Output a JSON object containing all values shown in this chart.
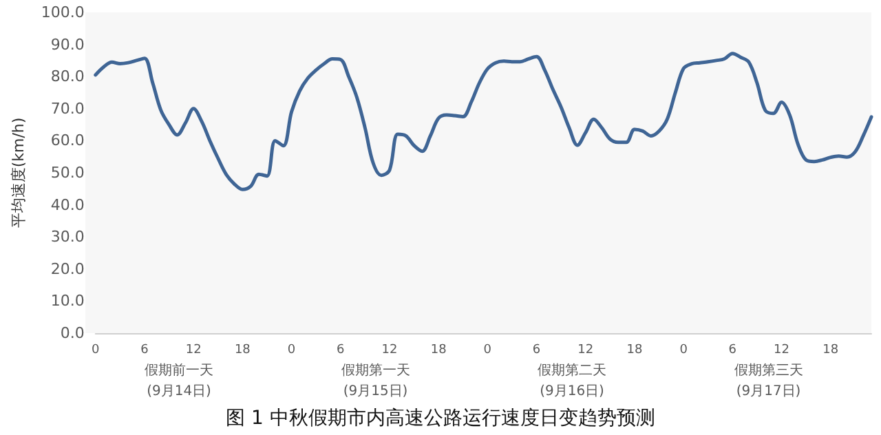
{
  "chart_data": {
    "type": "line",
    "title": "图 1 中秋假期市内高速公路运行速度日变趋势预测",
    "ylabel": "平均速度(km/h)",
    "annotations": [
      "假期前一天\n(9月14日)",
      "假期第一天\n(9月15日)",
      "假期第二天\n(9月16日)",
      "假期第三天\n(9月17日)"
    ],
    "categories": [
      "0",
      null,
      null,
      null,
      null,
      null,
      "6",
      null,
      null,
      null,
      null,
      null,
      "12",
      null,
      null,
      null,
      null,
      null,
      "18",
      null,
      null,
      null,
      null,
      null,
      "0",
      null,
      null,
      null,
      null,
      null,
      "6",
      null,
      null,
      null,
      null,
      null,
      "12",
      null,
      null,
      null,
      null,
      null,
      "18",
      null,
      null,
      null,
      null,
      null,
      "0",
      null,
      null,
      null,
      null,
      null,
      "6",
      null,
      null,
      null,
      null,
      null,
      "12",
      null,
      null,
      null,
      null,
      null,
      "18",
      null,
      null,
      null,
      null,
      null,
      "0",
      null,
      null,
      null,
      null,
      null,
      "6",
      null,
      null,
      null,
      null,
      null,
      "12",
      null,
      null,
      null,
      null,
      null,
      "18",
      null,
      null,
      null,
      null,
      null
    ],
    "series": [
      {
        "color": "#3f6595",
        "values": [
          80.5,
          83,
          84.5,
          84,
          84.3,
          85,
          85.7,
          78,
          69.5,
          65,
          61.8,
          65.5,
          70,
          66,
          60,
          54.5,
          49.5,
          46.5,
          44.8,
          45.8,
          49.5,
          49,
          60,
          58.4,
          69,
          75.5,
          79.5,
          82,
          84,
          85.5,
          85.3,
          80,
          73.5,
          64,
          53,
          49.2,
          50.8,
          62,
          61.5,
          58.5,
          56.7,
          61.5,
          67,
          68,
          67.8,
          67.5,
          72,
          78,
          82.4,
          84.3,
          84.8,
          84.6,
          84.6,
          85.5,
          86.2,
          82,
          76,
          70.5,
          64,
          58.6,
          62.5,
          66.7,
          64,
          60.5,
          59.5,
          59.5,
          63.5,
          63,
          61.5,
          63,
          66.7,
          75,
          82.5,
          84,
          84.3,
          84.6,
          85,
          85.5,
          87.2,
          86,
          84.5,
          78,
          69.5,
          68.5,
          72,
          68,
          59,
          54,
          53.5,
          54,
          54.8,
          55.2,
          54.9,
          56.5,
          61.5,
          67.4
        ]
      }
    ],
    "ylim": [
      0,
      100
    ],
    "yticks": [
      {
        "value": 0,
        "label": "0.0"
      },
      {
        "value": 10,
        "label": "10.0"
      },
      {
        "value": 20,
        "label": "20.0"
      },
      {
        "value": 30,
        "label": "30.0"
      },
      {
        "value": 40,
        "label": "40.0"
      },
      {
        "value": 50,
        "label": "50.0"
      },
      {
        "value": 60,
        "label": "60.0"
      },
      {
        "value": 70,
        "label": "70.0"
      },
      {
        "value": 80,
        "label": "80.0"
      },
      {
        "value": 90,
        "label": "90.0"
      },
      {
        "value": 100,
        "label": "100.0"
      }
    ],
    "grid": false,
    "marker": "none",
    "line_style": "solid"
  }
}
